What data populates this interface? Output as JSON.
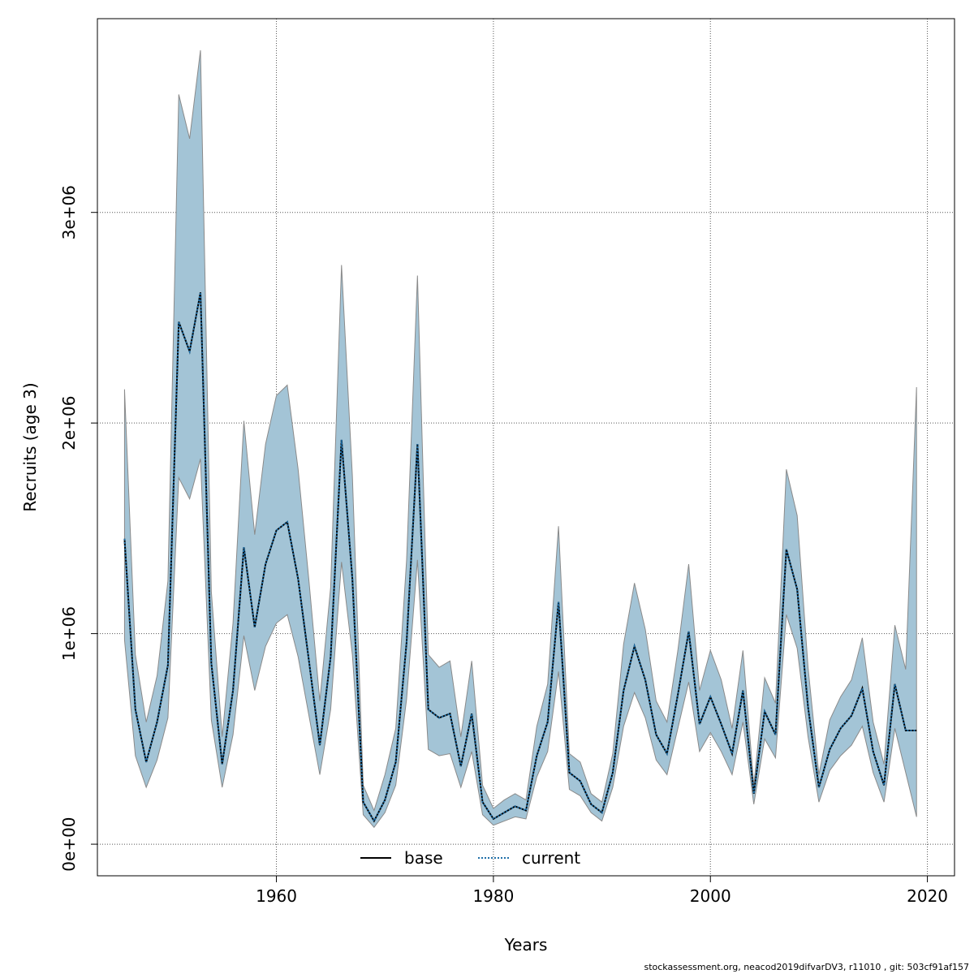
{
  "chart_data": {
    "type": "area",
    "xlabel": "Years",
    "ylabel": "Recruits (age 3)",
    "xlim": [
      1943.5,
      2022.5
    ],
    "ylim": [
      -150000,
      3920000
    ],
    "x_ticks": [
      1960,
      1980,
      2000,
      2020
    ],
    "x_tick_labels": [
      "1960",
      "1980",
      "2000",
      "2020"
    ],
    "y_ticks": [
      0,
      1000000,
      2000000,
      3000000
    ],
    "y_tick_labels": [
      "0e+00",
      "1e+06",
      "2e+06",
      "3e+06"
    ],
    "grid": true,
    "legend_position": "bottom",
    "band_color": "#a3c4d6",
    "band_edge_color": "#8a8a8a",
    "years": [
      1946,
      1947,
      1948,
      1949,
      1950,
      1951,
      1952,
      1953,
      1954,
      1955,
      1956,
      1957,
      1958,
      1959,
      1960,
      1961,
      1962,
      1963,
      1964,
      1965,
      1966,
      1967,
      1968,
      1969,
      1970,
      1971,
      1972,
      1973,
      1974,
      1975,
      1976,
      1977,
      1978,
      1979,
      1980,
      1981,
      1982,
      1983,
      1984,
      1985,
      1986,
      1987,
      1988,
      1989,
      1990,
      1991,
      1992,
      1993,
      1994,
      1995,
      1996,
      1997,
      1998,
      1999,
      2000,
      2001,
      2002,
      2003,
      2004,
      2005,
      2006,
      2007,
      2008,
      2009,
      2010,
      2011,
      2012,
      2013,
      2014,
      2015,
      2016,
      2017,
      2018,
      2019
    ],
    "upper": [
      2160000,
      900000,
      580000,
      800000,
      1250000,
      3560000,
      3350000,
      3770000,
      1200000,
      510000,
      1050000,
      2010000,
      1470000,
      1900000,
      2130000,
      2180000,
      1780000,
      1250000,
      680000,
      1220000,
      2750000,
      1750000,
      280000,
      160000,
      330000,
      550000,
      1350000,
      2700000,
      900000,
      840000,
      870000,
      510000,
      870000,
      280000,
      170000,
      210000,
      240000,
      210000,
      560000,
      760000,
      1510000,
      430000,
      390000,
      240000,
      200000,
      430000,
      950000,
      1240000,
      1020000,
      680000,
      580000,
      920000,
      1330000,
      730000,
      920000,
      780000,
      550000,
      920000,
      280000,
      790000,
      670000,
      1780000,
      1560000,
      840000,
      330000,
      590000,
      700000,
      780000,
      980000,
      580000,
      380000,
      1040000,
      830000,
      2170000
    ],
    "lower": [
      970000,
      420000,
      270000,
      400000,
      600000,
      1740000,
      1640000,
      1830000,
      590000,
      270000,
      520000,
      990000,
      730000,
      940000,
      1050000,
      1090000,
      890000,
      610000,
      330000,
      640000,
      1340000,
      900000,
      140000,
      80000,
      150000,
      280000,
      690000,
      1350000,
      450000,
      420000,
      430000,
      270000,
      440000,
      140000,
      90000,
      110000,
      130000,
      120000,
      320000,
      440000,
      820000,
      260000,
      230000,
      150000,
      110000,
      270000,
      560000,
      720000,
      600000,
      400000,
      330000,
      550000,
      770000,
      440000,
      530000,
      440000,
      330000,
      580000,
      190000,
      500000,
      410000,
      1090000,
      930000,
      510000,
      200000,
      350000,
      420000,
      470000,
      560000,
      340000,
      200000,
      550000,
      340000,
      130000
    ],
    "series": [
      {
        "name": "base",
        "line_style": "solid",
        "color": "#000000",
        "values": [
          1450000,
          640000,
          390000,
          580000,
          850000,
          2480000,
          2340000,
          2620000,
          860000,
          380000,
          730000,
          1410000,
          1030000,
          1330000,
          1490000,
          1530000,
          1260000,
          870000,
          470000,
          890000,
          1920000,
          1260000,
          200000,
          110000,
          210000,
          390000,
          960000,
          1900000,
          640000,
          600000,
          620000,
          370000,
          620000,
          200000,
          120000,
          150000,
          180000,
          160000,
          420000,
          580000,
          1150000,
          340000,
          300000,
          190000,
          150000,
          340000,
          730000,
          940000,
          780000,
          520000,
          430000,
          710000,
          1010000,
          570000,
          700000,
          570000,
          430000,
          730000,
          240000,
          630000,
          520000,
          1400000,
          1210000,
          650000,
          270000,
          450000,
          550000,
          610000,
          740000,
          440000,
          280000,
          760000,
          540000,
          540000
        ]
      },
      {
        "name": "current",
        "line_style": "dotted",
        "color": "#1f6fa8",
        "values": [
          1450000,
          640000,
          390000,
          580000,
          850000,
          2480000,
          2340000,
          2620000,
          860000,
          380000,
          730000,
          1410000,
          1030000,
          1330000,
          1490000,
          1530000,
          1260000,
          870000,
          470000,
          890000,
          1920000,
          1260000,
          200000,
          110000,
          210000,
          390000,
          960000,
          1900000,
          640000,
          600000,
          620000,
          370000,
          620000,
          200000,
          120000,
          150000,
          180000,
          160000,
          420000,
          580000,
          1150000,
          340000,
          300000,
          190000,
          150000,
          340000,
          730000,
          940000,
          780000,
          520000,
          430000,
          710000,
          1010000,
          570000,
          700000,
          570000,
          430000,
          730000,
          240000,
          630000,
          520000,
          1400000,
          1210000,
          650000,
          270000,
          450000,
          550000,
          610000,
          740000,
          440000,
          280000,
          760000,
          540000,
          540000
        ]
      }
    ]
  },
  "footer": "stockassessment.org, neacod2019difvarDV3, r11010 , git: 503cf91af157"
}
